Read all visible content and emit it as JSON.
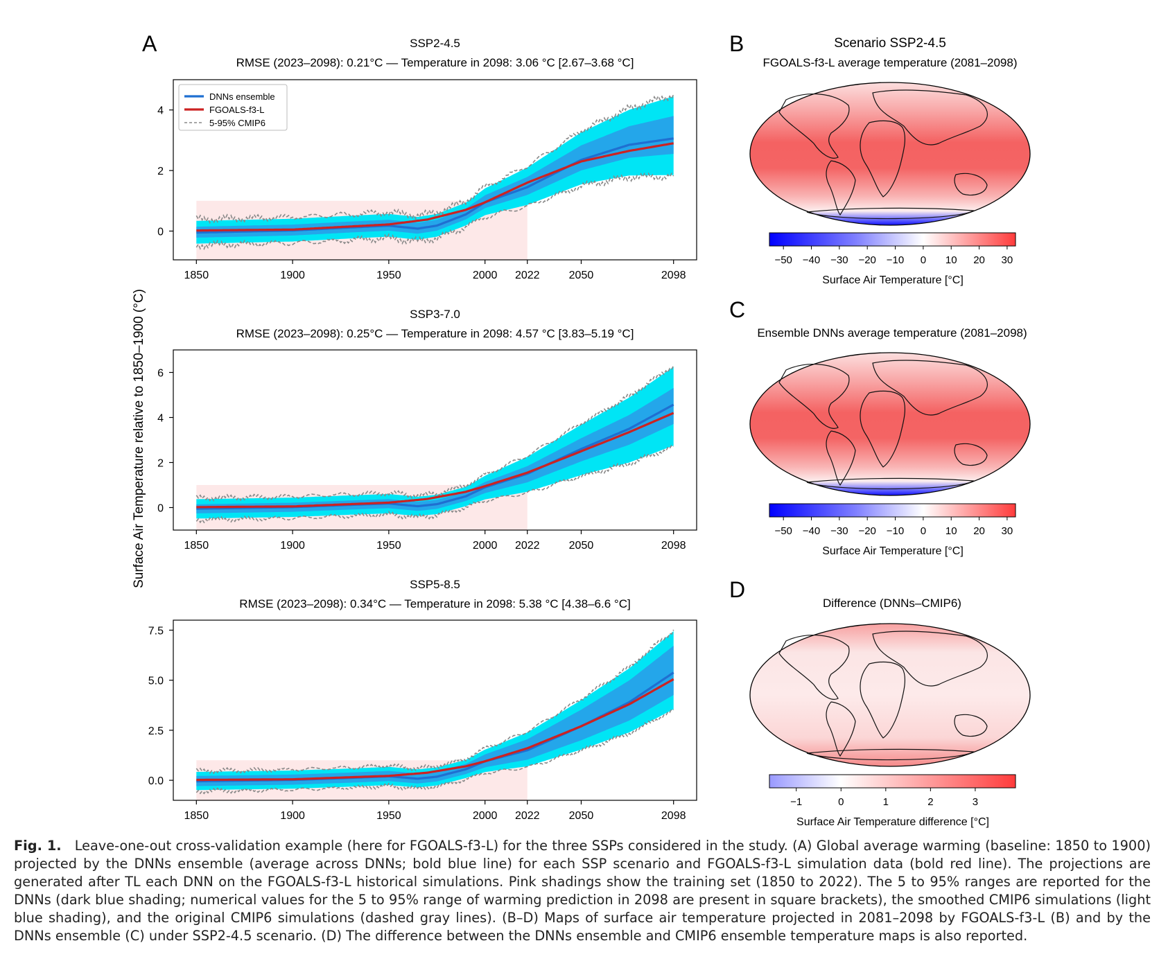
{
  "figure": {
    "panel_letters": [
      "A",
      "B",
      "C",
      "D"
    ],
    "shared_ylabel": "Surface Air Temperature relative to 1850–1900 (°C)",
    "caption_lead": "Fig. 1.",
    "caption_body": "Leave-one-out cross-validation example (here for FGOALS-f3-L) for the three SSPs considered in the study. (A) Global average warming (baseline: 1850 to 1900) projected by the DNNs ensemble (average across DNNs; bold blue line) for each SSP scenario and FGOALS-f3-L simulation data (bold red line). The projections are generated after TL each DNN on the FGOALS-f3-L historical simulations. Pink shadings show the training set (1850 to 2022). The 5 to 95% ranges are reported for the DNNs (dark blue shading; numerical values for the 5 to 95% range of warming prediction in 2098 are present in square brackets), the smoothed CMIP6 simulations (light blue shading), and the original CMIP6 simulations (dashed gray lines). (B–D) Maps of surface air temperature projected in 2081–2098 by FGOALS-f3-L (B) and by the DNNs ensemble (C) under SSP2-4.5 scenario. (D) The difference between the DNNs ensemble and CMIP6 ensemble temperature maps is also reported."
  },
  "legend": {
    "placement": "top-left",
    "entries": [
      {
        "label": "DNNs ensemble",
        "color": "#1f6fd1",
        "style": "solid"
      },
      {
        "label": "FGOALS-f3-L",
        "color": "#cc2222",
        "style": "solid"
      },
      {
        "label": "5-95% CMIP6",
        "color": "#888888",
        "style": "dashed"
      }
    ]
  },
  "colors": {
    "dnn": "#1f6fd1",
    "model": "#cc2222",
    "cmip_smooth_band": "#00e5f5",
    "dnn_band": "#2a9be8",
    "cmip_dashed": "#888888",
    "training_shade": "#fde8e8"
  },
  "chart_data": [
    {
      "type": "line",
      "title": "SSP2-4.5",
      "subtitle": "RMSE (2023–2098): 0.21°C — Temperature in 2098: 3.06 °C [2.67–3.68 °C]",
      "x_ticks": [
        1850,
        1900,
        1950,
        2000,
        2022,
        2050,
        2098
      ],
      "y_ticks": [
        0,
        2,
        4
      ],
      "y_tick_labels": [
        "0",
        "2",
        "4"
      ],
      "xlim": [
        1838,
        2110
      ],
      "ylim": [
        -0.95,
        5.0
      ],
      "training_period": [
        1850,
        2022
      ],
      "dnn_keypoints": [
        [
          1850,
          -0.05
        ],
        [
          1900,
          0.02
        ],
        [
          1930,
          0.12
        ],
        [
          1950,
          0.18
        ],
        [
          1965,
          0.08
        ],
        [
          1975,
          0.18
        ],
        [
          1990,
          0.55
        ],
        [
          2000,
          0.95
        ],
        [
          2022,
          1.45
        ],
        [
          2050,
          2.35
        ],
        [
          2075,
          2.85
        ],
        [
          2098,
          3.06
        ]
      ],
      "model_keypoints": [
        [
          1850,
          0.02
        ],
        [
          1900,
          0.05
        ],
        [
          1950,
          0.22
        ],
        [
          1970,
          0.38
        ],
        [
          1990,
          0.7
        ],
        [
          2000,
          0.95
        ],
        [
          2022,
          1.6
        ],
        [
          2050,
          2.3
        ],
        [
          2075,
          2.65
        ],
        [
          2098,
          2.9
        ]
      ],
      "dnn_range_2098": [
        2.67,
        3.68
      ],
      "cmip_range_2098": [
        2.1,
        4.2
      ],
      "grid": false
    },
    {
      "type": "line",
      "title": "SSP3-7.0",
      "subtitle": "RMSE (2023–2098): 0.25°C — Temperature in 2098: 4.57 °C [3.83–5.19 °C]",
      "x_ticks": [
        1850,
        1900,
        1950,
        2000,
        2022,
        2050,
        2098
      ],
      "y_ticks": [
        0,
        2,
        4,
        6
      ],
      "y_tick_labels": [
        "0",
        "2",
        "4",
        "6"
      ],
      "xlim": [
        1838,
        2110
      ],
      "ylim": [
        -1.0,
        7.0
      ],
      "training_period": [
        1850,
        2022
      ],
      "dnn_keypoints": [
        [
          1850,
          -0.05
        ],
        [
          1900,
          0.02
        ],
        [
          1930,
          0.12
        ],
        [
          1950,
          0.18
        ],
        [
          1965,
          0.06
        ],
        [
          1975,
          0.15
        ],
        [
          1990,
          0.5
        ],
        [
          2000,
          0.9
        ],
        [
          2022,
          1.5
        ],
        [
          2050,
          2.6
        ],
        [
          2075,
          3.5
        ],
        [
          2098,
          4.57
        ]
      ],
      "model_keypoints": [
        [
          1850,
          0.02
        ],
        [
          1900,
          0.05
        ],
        [
          1950,
          0.22
        ],
        [
          1970,
          0.38
        ],
        [
          1990,
          0.7
        ],
        [
          2000,
          0.95
        ],
        [
          2022,
          1.55
        ],
        [
          2050,
          2.5
        ],
        [
          2075,
          3.35
        ],
        [
          2098,
          4.2
        ]
      ],
      "dnn_range_2098": [
        3.83,
        5.19
      ],
      "cmip_range_2098": [
        3.0,
        6.0
      ],
      "grid": false
    },
    {
      "type": "line",
      "title": "SSP5-8.5",
      "subtitle": "RMSE (2023–2098): 0.34°C — Temperature in 2098: 5.38 °C [4.38–6.6 °C]",
      "x_ticks": [
        1850,
        1900,
        1950,
        2000,
        2022,
        2050,
        2098
      ],
      "y_ticks": [
        0,
        2.5,
        5,
        7.5
      ],
      "y_tick_labels": [
        "0.0",
        "2.5",
        "5.0",
        "7.5"
      ],
      "xlim": [
        1838,
        2110
      ],
      "ylim": [
        -1.0,
        8.0
      ],
      "training_period": [
        1850,
        2022
      ],
      "dnn_keypoints": [
        [
          1850,
          -0.05
        ],
        [
          1900,
          0.02
        ],
        [
          1930,
          0.12
        ],
        [
          1950,
          0.2
        ],
        [
          1965,
          0.08
        ],
        [
          1975,
          0.18
        ],
        [
          1990,
          0.55
        ],
        [
          2000,
          0.95
        ],
        [
          2022,
          1.5
        ],
        [
          2050,
          2.7
        ],
        [
          2075,
          3.9
        ],
        [
          2098,
          5.38
        ]
      ],
      "model_keypoints": [
        [
          1850,
          0.02
        ],
        [
          1900,
          0.05
        ],
        [
          1950,
          0.22
        ],
        [
          1970,
          0.38
        ],
        [
          1990,
          0.7
        ],
        [
          2000,
          0.95
        ],
        [
          2022,
          1.6
        ],
        [
          2050,
          2.7
        ],
        [
          2075,
          3.8
        ],
        [
          2098,
          5.05
        ]
      ],
      "dnn_range_2098": [
        4.38,
        6.6
      ],
      "cmip_range_2098": [
        3.8,
        7.2
      ],
      "grid": false
    },
    {
      "type": "heatmap",
      "panel": "B",
      "title": "Scenario SSP2-4.5",
      "subtitle": "FGOALS-f3-L average temperature (2081–2098)",
      "colorbar_label": "Surface Air Temperature [°C]",
      "colorbar_ticks": [
        "−50",
        "−40",
        "−30",
        "−20",
        "−10",
        "0",
        "10",
        "20",
        "30"
      ],
      "colorbar_range": [
        -55,
        33
      ]
    },
    {
      "type": "heatmap",
      "panel": "C",
      "title": "",
      "subtitle": "Ensemble DNNs average temperature (2081–2098)",
      "colorbar_label": "Surface Air Temperature [°C]",
      "colorbar_ticks": [
        "−50",
        "−40",
        "−30",
        "−20",
        "−10",
        "0",
        "10",
        "20",
        "30"
      ],
      "colorbar_range": [
        -55,
        33
      ]
    },
    {
      "type": "heatmap",
      "panel": "D",
      "title": "",
      "subtitle": "Difference (DNNs–CMIP6)",
      "colorbar_label": "Surface Air Temperature difference [°C]",
      "colorbar_ticks": [
        "−1",
        "0",
        "1",
        "2",
        "3"
      ],
      "colorbar_range": [
        -1.6,
        3.9
      ]
    }
  ]
}
